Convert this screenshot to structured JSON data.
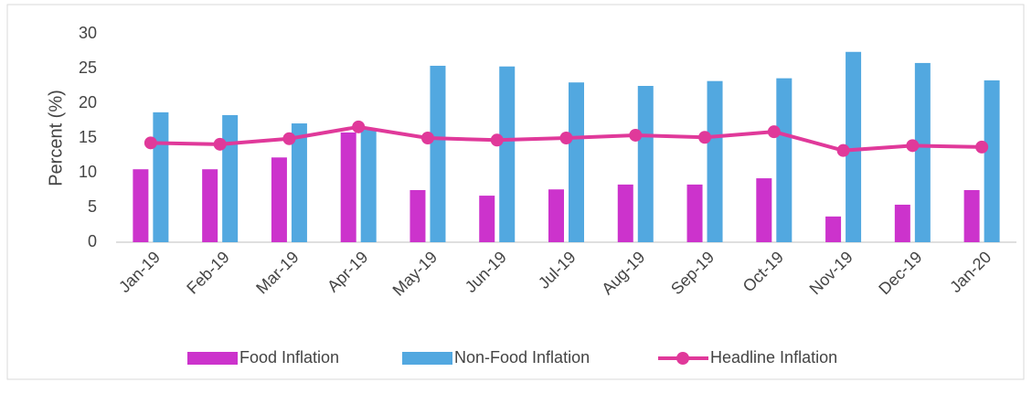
{
  "chart_data": {
    "type": "combo",
    "y_label": "Percent (%)",
    "categories": [
      "Jan-19",
      "Feb-19",
      "Mar-19",
      "Apr-19",
      "May-19",
      "Jun-19",
      "Jul-19",
      "Aug-19",
      "Sep-19",
      "Oct-19",
      "Nov-19",
      "Dec-19",
      "Jan-20"
    ],
    "series": [
      {
        "name": "Food Inflation",
        "mark": "bar",
        "color": "#cc33cc",
        "values": [
          10.5,
          10.5,
          12.2,
          15.8,
          7.5,
          6.7,
          7.6,
          8.3,
          8.3,
          9.2,
          3.7,
          5.4,
          7.5
        ]
      },
      {
        "name": "Non-Food Inflation",
        "mark": "bar",
        "color": "#52a8e0",
        "values": [
          18.7,
          18.3,
          17.1,
          16.2,
          25.4,
          25.3,
          23.0,
          22.5,
          23.2,
          23.6,
          27.4,
          25.8,
          23.3
        ]
      },
      {
        "name": "Headline Inflation",
        "mark": "line",
        "color": "#e0399a",
        "values": [
          14.3,
          14.1,
          14.9,
          16.6,
          15.0,
          14.7,
          15.0,
          15.4,
          15.1,
          15.9,
          13.2,
          13.9,
          13.7
        ]
      }
    ],
    "ylim": [
      0,
      30
    ],
    "yticks": [
      0,
      5,
      10,
      15,
      20,
      25,
      30
    ],
    "grid": false,
    "legend": "bottom"
  }
}
